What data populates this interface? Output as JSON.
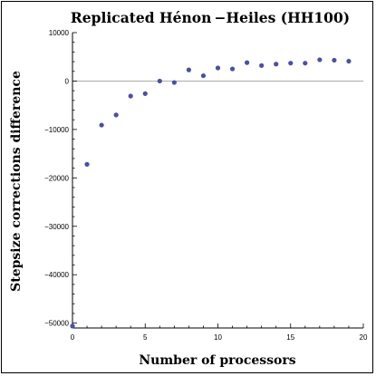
{
  "chart_data": {
    "type": "scatter",
    "title": "Replicated Hénon −Heiles (HH100)",
    "xlabel": "Number of processors",
    "ylabel": "Stepsize corrections difference",
    "xlim": [
      0,
      20
    ],
    "ylim": [
      -51000,
      10000
    ],
    "xticks": [
      0,
      5,
      10,
      15,
      20
    ],
    "xtick_labels": [
      "0",
      "5",
      "10",
      "15",
      "20"
    ],
    "yticks": [
      10000,
      0,
      -10000,
      -20000,
      -30000,
      -40000,
      -50000
    ],
    "ytick_labels": [
      "10000",
      "0",
      "−10000",
      "−20000",
      "−30000",
      "−40000",
      "−50000"
    ],
    "zero_line": true,
    "grid": false,
    "legend": "none",
    "series": [
      {
        "color": "#4b4fa6",
        "points": [
          {
            "x": 0,
            "y": -50600
          },
          {
            "x": 1,
            "y": -17200
          },
          {
            "x": 2,
            "y": -9100
          },
          {
            "x": 3,
            "y": -7000
          },
          {
            "x": 4,
            "y": -3100
          },
          {
            "x": 5,
            "y": -2600
          },
          {
            "x": 6,
            "y": 0
          },
          {
            "x": 7,
            "y": -300
          },
          {
            "x": 8,
            "y": 2300
          },
          {
            "x": 9,
            "y": 1100
          },
          {
            "x": 10,
            "y": 2700
          },
          {
            "x": 11,
            "y": 2500
          },
          {
            "x": 12,
            "y": 3800
          },
          {
            "x": 13,
            "y": 3200
          },
          {
            "x": 14,
            "y": 3500
          },
          {
            "x": 15,
            "y": 3700
          },
          {
            "x": 16,
            "y": 3700
          },
          {
            "x": 17,
            "y": 4400
          },
          {
            "x": 18,
            "y": 4300
          },
          {
            "x": 19,
            "y": 4100
          }
        ]
      }
    ]
  }
}
